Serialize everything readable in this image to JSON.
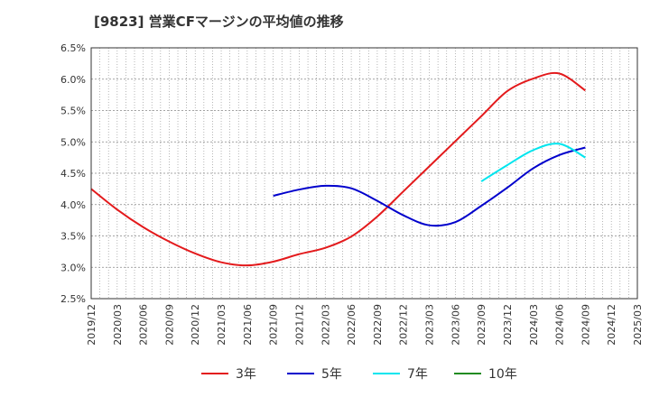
{
  "chart_data": {
    "type": "line",
    "title": "[9823]  営業CFマージンの平均値の推移",
    "xlabel": "",
    "ylabel": "",
    "ylim": [
      2.5,
      6.5
    ],
    "y_ticks": [
      "2.5%",
      "3.0%",
      "3.5%",
      "4.0%",
      "4.5%",
      "5.0%",
      "5.5%",
      "6.0%",
      "6.5%"
    ],
    "x_ticks": [
      "2019/12",
      "2020/03",
      "2020/06",
      "2020/09",
      "2020/12",
      "2021/03",
      "2021/06",
      "2021/09",
      "2021/12",
      "2022/03",
      "2022/06",
      "2022/09",
      "2022/12",
      "2023/03",
      "2023/06",
      "2023/09",
      "2023/12",
      "2024/03",
      "2024/06",
      "2024/09",
      "2024/12",
      "2025/03"
    ],
    "grid": true,
    "legend_position": "bottom",
    "series": [
      {
        "name": "3年",
        "color": "#e31a1c",
        "points": [
          [
            "2019/12",
            4.25
          ],
          [
            "2020/03",
            3.92
          ],
          [
            "2020/06",
            3.64
          ],
          [
            "2020/09",
            3.41
          ],
          [
            "2020/12",
            3.22
          ],
          [
            "2021/03",
            3.08
          ],
          [
            "2021/06",
            3.03
          ],
          [
            "2021/09",
            3.09
          ],
          [
            "2021/12",
            3.21
          ],
          [
            "2022/03",
            3.31
          ],
          [
            "2022/06",
            3.49
          ],
          [
            "2022/09",
            3.81
          ],
          [
            "2022/12",
            4.21
          ],
          [
            "2023/03",
            4.61
          ],
          [
            "2023/06",
            5.01
          ],
          [
            "2023/09",
            5.41
          ],
          [
            "2023/12",
            5.81
          ],
          [
            "2024/03",
            6.01
          ],
          [
            "2024/06",
            6.09
          ],
          [
            "2024/09",
            5.82
          ]
        ]
      },
      {
        "name": "5年",
        "color": "#0000cc",
        "points": [
          [
            "2021/09",
            4.14
          ],
          [
            "2021/12",
            4.24
          ],
          [
            "2022/03",
            4.3
          ],
          [
            "2022/06",
            4.26
          ],
          [
            "2022/09",
            4.06
          ],
          [
            "2022/12",
            3.83
          ],
          [
            "2023/03",
            3.67
          ],
          [
            "2023/06",
            3.72
          ],
          [
            "2023/09",
            3.98
          ],
          [
            "2023/12",
            4.27
          ],
          [
            "2024/03",
            4.58
          ],
          [
            "2024/06",
            4.79
          ],
          [
            "2024/09",
            4.91
          ]
        ]
      },
      {
        "name": "7年",
        "color": "#00e5ee",
        "points": [
          [
            "2023/09",
            4.37
          ],
          [
            "2023/12",
            4.63
          ],
          [
            "2024/03",
            4.87
          ],
          [
            "2024/06",
            4.97
          ],
          [
            "2024/09",
            4.75
          ]
        ]
      },
      {
        "name": "10年",
        "color": "#228b22",
        "points": []
      }
    ]
  }
}
